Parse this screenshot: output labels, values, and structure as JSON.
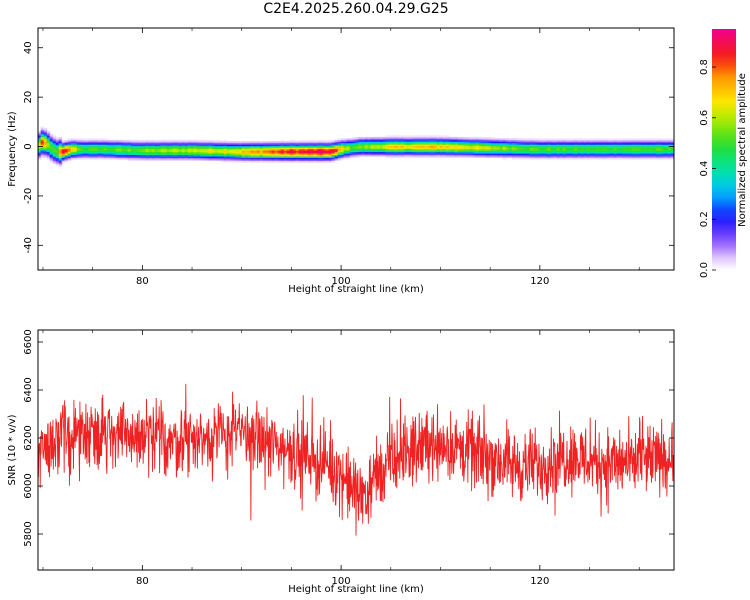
{
  "title": "C2E4.2025.260.04.29.G25",
  "chart_data": [
    {
      "type": "heatmap",
      "title": "C2E4.2025.260.04.29.G25",
      "xlabel": "Height of straight line (km)",
      "ylabel": "Frequency (Hz)",
      "xlim": [
        69.5,
        133.5
      ],
      "ylim": [
        -50,
        48
      ],
      "x_ticks": [
        80,
        100,
        120
      ],
      "x_tick_labels": [
        "80",
        "100",
        "120"
      ],
      "y_ticks": [
        -40,
        -20,
        0,
        20,
        40
      ],
      "y_tick_labels": [
        "-40",
        "-20",
        "0",
        "20",
        "40"
      ],
      "colorbar": {
        "label": "Normalized spectral amplitude",
        "range": [
          0,
          0.95
        ],
        "ticks": [
          0.0,
          0.2,
          0.4,
          0.6,
          0.8
        ],
        "tick_labels": [
          "0.0",
          "0.2",
          "0.4",
          "0.6",
          "0.8"
        ]
      },
      "ridge": {
        "heights": [
          69.5,
          70,
          70.5,
          71,
          71.5,
          72,
          73,
          74,
          76,
          80,
          85,
          90,
          95,
          99,
          100,
          101,
          102,
          105,
          110,
          115,
          120,
          125,
          130,
          133.5
        ],
        "center_freq": [
          0,
          2,
          1,
          -1,
          -2,
          -2,
          -1,
          -1,
          -1,
          -1.5,
          -1.5,
          -2,
          -2,
          -2,
          -1,
          -0.5,
          0,
          0,
          0,
          -0.5,
          -1,
          -1,
          -1,
          -1
        ],
        "peak_amplitude": [
          0.5,
          0.9,
          0.55,
          0.5,
          0.55,
          0.9,
          0.7,
          0.5,
          0.52,
          0.55,
          0.62,
          0.7,
          0.88,
          0.92,
          0.7,
          0.55,
          0.55,
          0.68,
          0.72,
          0.6,
          0.52,
          0.5,
          0.52,
          0.5
        ],
        "half_width_hz": 3
      },
      "grid": false
    },
    {
      "type": "line",
      "xlabel": "Height of straight line (km)",
      "ylabel": "SNR (10 * v/v)",
      "xlim": [
        69.5,
        133.5
      ],
      "ylim": [
        5650,
        6650
      ],
      "x_ticks": [
        80,
        100,
        120
      ],
      "x_tick_labels": [
        "80",
        "100",
        "120"
      ],
      "y_ticks": [
        5800,
        6000,
        6200,
        6400,
        6600
      ],
      "y_tick_labels": [
        "5800",
        "6000",
        "6200",
        "6400",
        "6600"
      ],
      "color": "#ee2222",
      "series": [
        {
          "x": [
            70,
            72,
            75,
            78,
            80,
            83,
            85,
            88,
            90,
            93,
            95,
            98,
            100,
            101,
            102,
            103,
            105,
            108,
            110,
            112,
            115,
            118,
            120,
            123,
            125,
            128,
            130,
            133
          ],
          "y": [
            6160,
            6200,
            6230,
            6210,
            6200,
            6190,
            6190,
            6210,
            6220,
            6170,
            6150,
            6100,
            6050,
            5990,
            5960,
            6000,
            6100,
            6170,
            6180,
            6150,
            6120,
            6080,
            6090,
            6130,
            6110,
            6090,
            6100,
            6120
          ],
          "noise_amplitude": 220
        }
      ],
      "grid": false
    }
  ]
}
